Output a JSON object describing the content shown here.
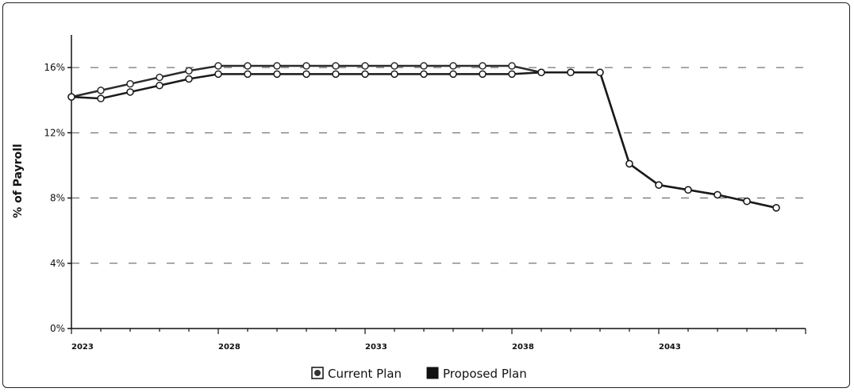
{
  "chart_data": {
    "type": "line",
    "title": "",
    "xlabel": "",
    "ylabel": "% of Payroll",
    "ylim": [
      0,
      18
    ],
    "xlim": [
      2023,
      2048
    ],
    "y_ticks": [
      0,
      4,
      8,
      12,
      16
    ],
    "y_tick_labels": [
      "0%",
      "4%",
      "8%",
      "12%",
      "16%"
    ],
    "x_ticks": [
      2023,
      2028,
      2033,
      2038,
      2043
    ],
    "x_tick_labels": [
      "2023",
      "2028",
      "2033",
      "2038",
      "2043"
    ],
    "grid": "dashed horizontal",
    "legend": "bottom",
    "x": [
      2023,
      2024,
      2025,
      2026,
      2027,
      2028,
      2029,
      2030,
      2031,
      2032,
      2033,
      2034,
      2035,
      2036,
      2037,
      2038,
      2039,
      2040,
      2041,
      2042,
      2043,
      2044,
      2045,
      2046,
      2047
    ],
    "series": [
      {
        "name": "Current Plan",
        "color": "#2b2b2b",
        "marker": "hollow-circle",
        "values": [
          14.2,
          14.6,
          15.0,
          15.4,
          15.8,
          16.1,
          16.1,
          16.1,
          16.1,
          16.1,
          16.1,
          16.1,
          16.1,
          16.1,
          16.1,
          16.1,
          15.7,
          15.7,
          15.7,
          10.1,
          8.8,
          8.5,
          8.2,
          7.8,
          7.4
        ]
      },
      {
        "name": "Proposed Plan",
        "color": "#1a1a1a",
        "marker": "filled-square",
        "values": [
          14.2,
          14.1,
          14.5,
          14.9,
          15.3,
          15.6,
          15.6,
          15.6,
          15.6,
          15.6,
          15.6,
          15.6,
          15.6,
          15.6,
          15.6,
          15.6,
          15.7,
          15.7,
          15.7,
          10.1,
          8.8,
          8.5,
          8.2,
          7.8,
          7.4
        ]
      }
    ]
  }
}
